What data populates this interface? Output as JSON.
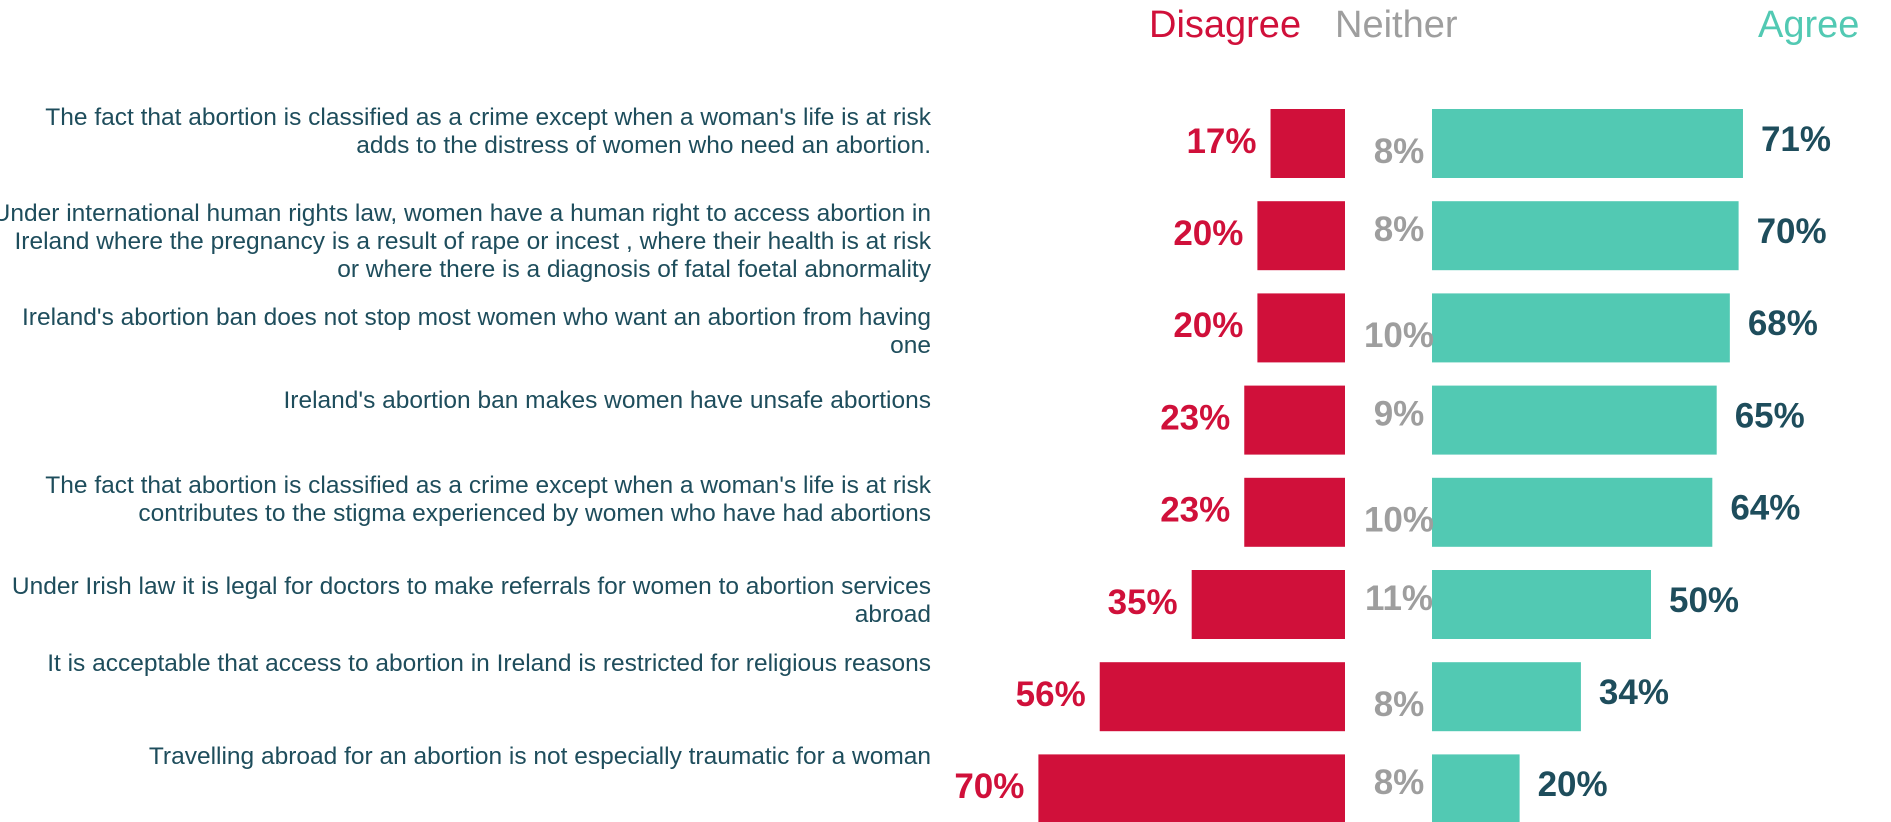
{
  "chart_data": {
    "type": "bar",
    "subtype": "diverging-stacked-horizontal",
    "legend": [
      {
        "name": "Disagree",
        "color": "#d0103a"
      },
      {
        "name": "Neither",
        "color": "#9e9e9e"
      },
      {
        "name": "Agree",
        "color": "#52c9b3"
      }
    ],
    "categories": [
      "The fact that abortion is classified as a crime except when a woman's life is at risk adds to the distress of women who need an abortion.",
      "Under international human rights law, women have a human right to access abortion in Ireland where the pregnancy is a result of rape or incest , where their health is at risk or where there is a diagnosis of fatal foetal abnormality",
      "Ireland's abortion ban does not stop most women who want an abortion from having one",
      "Ireland's abortion ban makes women have unsafe abortions",
      "The fact that abortion is classified as a crime except when a woman's life is at risk contributes to the stigma experienced by women who have had abortions",
      "Under Irish law it is legal for doctors to make referrals for women to abortion services abroad",
      "It is acceptable that access to abortion in Ireland is restricted for religious reasons",
      "Travelling abroad for an abortion is not especially traumatic for a woman"
    ],
    "series": [
      {
        "name": "Disagree",
        "values": [
          17,
          20,
          20,
          23,
          23,
          35,
          56,
          70
        ]
      },
      {
        "name": "Neither",
        "values": [
          8,
          8,
          10,
          9,
          10,
          11,
          8,
          8
        ]
      },
      {
        "name": "Agree",
        "values": [
          71,
          70,
          68,
          65,
          64,
          50,
          34,
          20
        ]
      }
    ],
    "value_suffix": "%",
    "colors": {
      "disagree": "#d0103a",
      "neither": "#9e9e9e",
      "agree": "#52c9b3",
      "agree_label": "#1e4d5c",
      "statement_text": "#1e4d5c"
    }
  }
}
